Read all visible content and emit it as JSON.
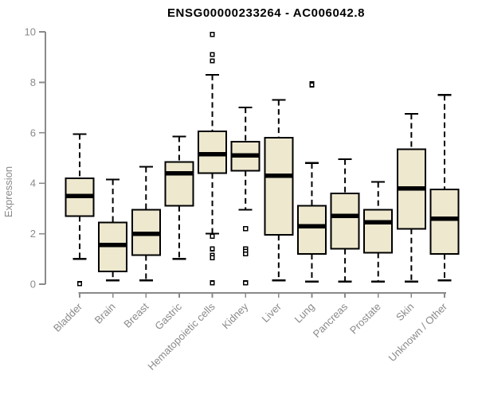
{
  "chart_data": {
    "type": "boxplot",
    "title": "ENSG00000233264 - AC006042.8",
    "ylabel": "Expression",
    "xlabel": "",
    "ylim": [
      0,
      10
    ],
    "yticks": [
      0,
      2,
      4,
      6,
      8,
      10
    ],
    "grid": false,
    "legend": false,
    "categories": [
      "Bladder",
      "Brain",
      "Breast",
      "Gastric",
      "Hematopoietic cells",
      "Kidney",
      "Liver",
      "Lung",
      "Pancreas",
      "Prostate",
      "Skin",
      "Unknown / Other"
    ],
    "boxes": [
      {
        "category": "Bladder",
        "whisker_low": 1.0,
        "q1": 2.7,
        "median": 3.5,
        "q3": 4.2,
        "whisker_high": 5.95,
        "outliers": [
          0.02
        ]
      },
      {
        "category": "Brain",
        "whisker_low": 0.15,
        "q1": 0.5,
        "median": 1.55,
        "q3": 2.45,
        "whisker_high": 4.15,
        "outliers": []
      },
      {
        "category": "Breast",
        "whisker_low": 0.15,
        "q1": 1.15,
        "median": 2.0,
        "q3": 2.95,
        "whisker_high": 4.65,
        "outliers": []
      },
      {
        "category": "Gastric",
        "whisker_low": 1.0,
        "q1": 3.1,
        "median": 4.4,
        "q3": 4.85,
        "whisker_high": 5.85,
        "outliers": []
      },
      {
        "category": "Hematopoietic cells",
        "whisker_low": 2.0,
        "q1": 4.4,
        "median": 5.15,
        "q3": 6.05,
        "whisker_high": 8.3,
        "outliers": [
          9.9,
          9.1,
          8.85,
          1.9,
          1.4,
          1.15,
          1.05,
          0.05
        ]
      },
      {
        "category": "Kidney",
        "whisker_low": 2.95,
        "q1": 4.5,
        "median": 5.1,
        "q3": 5.65,
        "whisker_high": 7.0,
        "outliers": [
          2.2,
          1.4,
          1.3,
          1.2,
          0.05
        ]
      },
      {
        "category": "Liver",
        "whisker_low": 0.15,
        "q1": 1.95,
        "median": 4.3,
        "q3": 5.8,
        "whisker_high": 7.3,
        "outliers": []
      },
      {
        "category": "Lung",
        "whisker_low": 0.1,
        "q1": 1.2,
        "median": 2.3,
        "q3": 3.1,
        "whisker_high": 4.8,
        "outliers": [
          7.95,
          7.9
        ]
      },
      {
        "category": "Pancreas",
        "whisker_low": 0.1,
        "q1": 1.4,
        "median": 2.7,
        "q3": 3.6,
        "whisker_high": 4.95,
        "outliers": []
      },
      {
        "category": "Prostate",
        "whisker_low": 0.1,
        "q1": 1.25,
        "median": 2.45,
        "q3": 2.95,
        "whisker_high": 4.05,
        "outliers": []
      },
      {
        "category": "Skin",
        "whisker_low": 0.1,
        "q1": 2.2,
        "median": 3.8,
        "q3": 5.35,
        "whisker_high": 6.75,
        "outliers": []
      },
      {
        "category": "Unknown / Other",
        "whisker_low": 0.15,
        "q1": 1.2,
        "median": 2.6,
        "q3": 3.75,
        "whisker_high": 7.5,
        "outliers": []
      }
    ],
    "colors": {
      "box_fill": "#EDE8CE",
      "box_border": "#000000",
      "median": "#000000",
      "whisker": "#000000",
      "outlier_fill": "#FFFFFF",
      "outlier_border": "#000000",
      "axis": "#8A8A8A",
      "tick_label": "#8A8A8A",
      "title": "#000000"
    }
  }
}
